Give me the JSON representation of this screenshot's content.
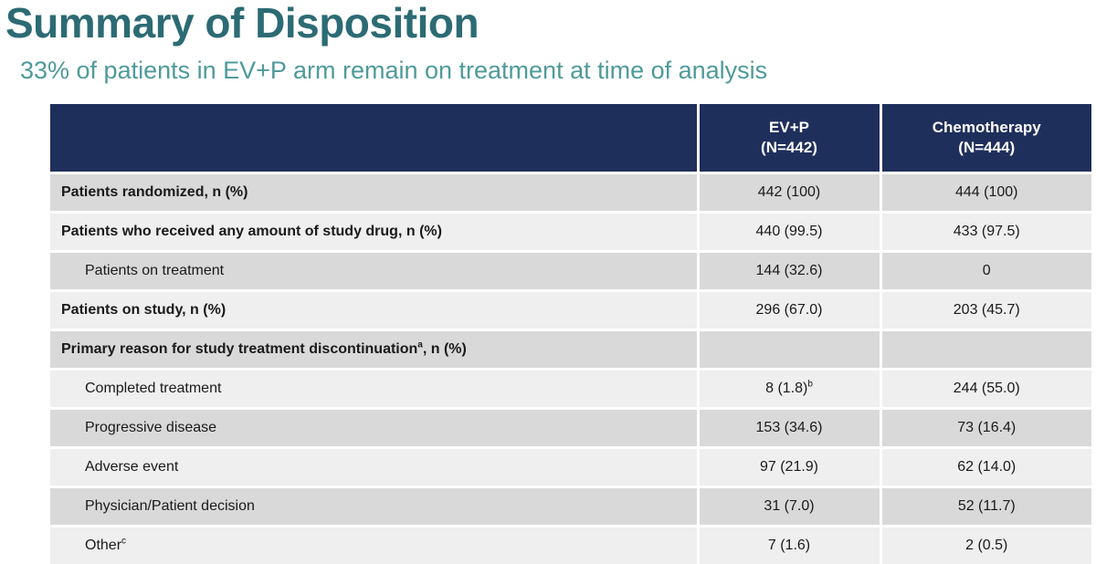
{
  "title": "Summary of Disposition",
  "subtitle": "33% of patients in EV+P arm remain on treatment at time of analysis",
  "table": {
    "columns": [
      {
        "name": "EV+P",
        "n": "(N=442)"
      },
      {
        "name": "Chemotherapy",
        "n": "(N=444)"
      }
    ],
    "rows": [
      {
        "label": "Patients randomized, n (%)",
        "sup": "",
        "suffix": "",
        "evp": "442 (100)",
        "evp_sup": "",
        "chemo": "444 (100)"
      },
      {
        "label": "Patients who received any amount of study drug, n (%)",
        "sup": "",
        "suffix": "",
        "evp": "440 (99.5)",
        "evp_sup": "",
        "chemo": "433 (97.5)"
      },
      {
        "label": "Patients on treatment",
        "sup": "",
        "suffix": "",
        "evp": "144 (32.6)",
        "evp_sup": "",
        "chemo": "0"
      },
      {
        "label": "Patients on study, n (%)",
        "sup": "",
        "suffix": "",
        "evp": "296 (67.0)",
        "evp_sup": "",
        "chemo": "203 (45.7)"
      },
      {
        "label": "Primary reason for study treatment discontinuation",
        "sup": "a",
        "suffix": ", n (%)",
        "evp": "",
        "evp_sup": "",
        "chemo": ""
      },
      {
        "label": "Completed treatment",
        "sup": "",
        "suffix": "",
        "evp": "8 (1.8)",
        "evp_sup": "b",
        "chemo": "244 (55.0)"
      },
      {
        "label": "Progressive disease",
        "sup": "",
        "suffix": "",
        "evp": "153 (34.6)",
        "evp_sup": "",
        "chemo": "73 (16.4)"
      },
      {
        "label": "Adverse event",
        "sup": "",
        "suffix": "",
        "evp": "97 (21.9)",
        "evp_sup": "",
        "chemo": "62 (14.0)"
      },
      {
        "label": "Physician/Patient decision",
        "sup": "",
        "suffix": "",
        "evp": "31 (7.0)",
        "evp_sup": "",
        "chemo": "52 (11.7)"
      },
      {
        "label": "Other",
        "sup": "c",
        "suffix": "",
        "evp": "7 (1.6)",
        "evp_sup": "",
        "chemo": "2 (0.5)"
      }
    ]
  }
}
